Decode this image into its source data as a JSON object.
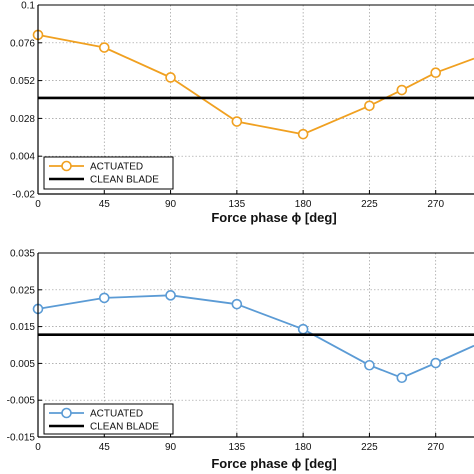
{
  "chart_data": [
    {
      "type": "line",
      "title": "",
      "xlabel": "Force phase ϕ  [deg]",
      "ylabel": "",
      "xlim": [
        0,
        296
      ],
      "ylim": [
        -0.02,
        0.1
      ],
      "x_ticks": [
        "0",
        "45",
        "90",
        "135",
        "180",
        "225",
        "270"
      ],
      "y_ticks": [
        "-0.02",
        "0.004",
        "0.028",
        "0.052",
        "0.076",
        "0.1"
      ],
      "grid": true,
      "legend_position": "bottom-left",
      "series": [
        {
          "name": "ACTUATED",
          "color": "#f0a020",
          "marker": "circle",
          "x": [
            0,
            45,
            90,
            135,
            180,
            225,
            247,
            270,
            296
          ],
          "y": [
            0.081,
            0.073,
            0.054,
            0.026,
            0.018,
            0.036,
            0.046,
            0.057,
            0.066
          ]
        },
        {
          "name": "CLEAN BLADE",
          "color": "#000000",
          "marker": "none",
          "x": [
            0,
            296
          ],
          "y": [
            0.041,
            0.041
          ]
        }
      ]
    },
    {
      "type": "line",
      "title": "",
      "xlabel": "Force phase ϕ  [deg]",
      "ylabel": "",
      "xlim": [
        0,
        296
      ],
      "ylim": [
        -0.015,
        0.035
      ],
      "x_ticks": [
        "0",
        "45",
        "90",
        "135",
        "180",
        "225",
        "270"
      ],
      "y_ticks": [
        "-0.015",
        "-0.005",
        "0.005",
        "0.015",
        "0.025",
        "0.035"
      ],
      "grid": true,
      "legend_position": "bottom-left",
      "series": [
        {
          "name": "ACTUATED",
          "color": "#5b9bd5",
          "marker": "circle",
          "x": [
            0,
            45,
            90,
            135,
            180,
            225,
            247,
            270,
            296
          ],
          "y": [
            0.0198,
            0.0228,
            0.0235,
            0.0211,
            0.0143,
            0.0045,
            0.0011,
            0.0051,
            0.0098
          ]
        },
        {
          "name": "CLEAN BLADE",
          "color": "#000000",
          "marker": "none",
          "x": [
            0,
            296
          ],
          "y": [
            0.0128,
            0.0128
          ]
        }
      ]
    }
  ]
}
